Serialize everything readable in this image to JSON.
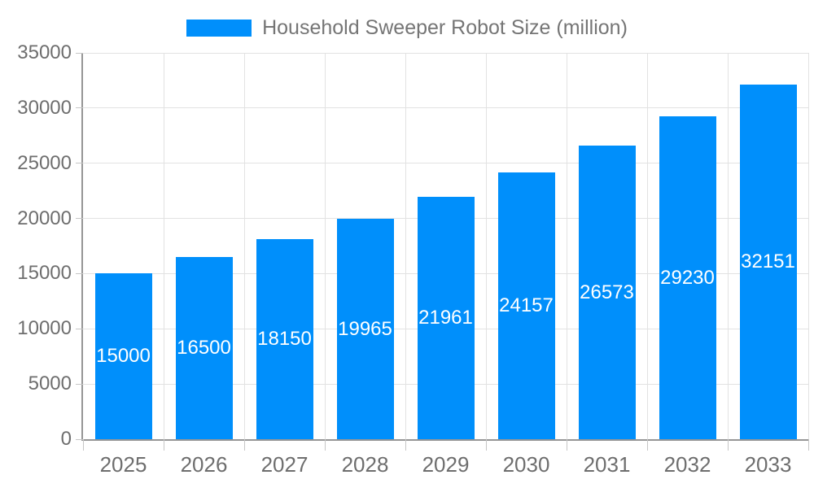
{
  "chart_data": {
    "type": "bar",
    "title": "Household Sweeper Robot Size (million)",
    "categories": [
      "2025",
      "2026",
      "2027",
      "2028",
      "2029",
      "2030",
      "2031",
      "2032",
      "2033"
    ],
    "values": [
      15000,
      16500,
      18150,
      19965,
      21961,
      24157,
      26573,
      29230,
      32151
    ],
    "y_ticks": [
      0,
      5000,
      10000,
      15000,
      20000,
      25000,
      30000,
      35000
    ],
    "ylim": [
      0,
      35000
    ],
    "xlabel": "",
    "ylabel": "",
    "grid": true,
    "legend_position": "top",
    "value_labels": "inside-center",
    "colors": {
      "bar": "#008FFB",
      "bar_label": "#ffffff",
      "axis_label": "#6e6e6e",
      "legend_text": "#757575",
      "gridline": "#e2e2e2",
      "axis_line": "#969696",
      "tick": "#c6c6c6",
      "background": "#ffffff"
    }
  }
}
